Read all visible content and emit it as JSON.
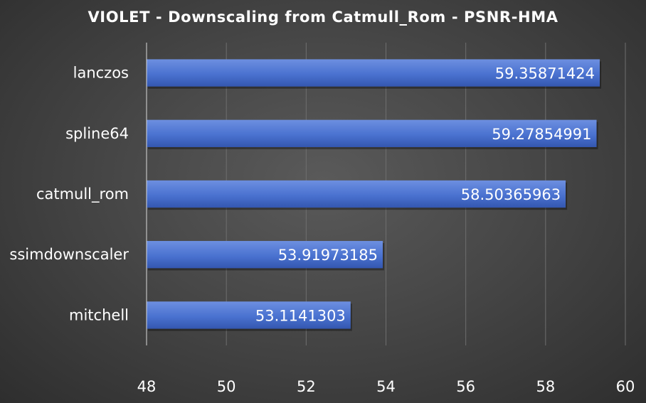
{
  "chart_data": {
    "type": "bar",
    "orientation": "horizontal",
    "title": "VIOLET - Downscaling from Catmull_Rom - PSNR-HMA",
    "categories": [
      "lanczos",
      "spline64",
      "catmull_rom",
      "ssimdownscaler",
      "mitchell"
    ],
    "values": [
      59.35871424,
      59.27854991,
      58.50365963,
      53.91973185,
      53.1141303
    ],
    "value_labels": [
      "59.35871424",
      "59.27854991",
      "58.50365963",
      "53.91973185",
      "53.1141303"
    ],
    "xlim": [
      48,
      60
    ],
    "xticks": [
      48,
      50,
      52,
      54,
      56,
      58,
      60
    ],
    "grid": true,
    "legend": "none",
    "colors": {
      "bar_top": "#6d8fe0",
      "bar_mid": "#4a72d0",
      "bar_bottom": "#3457b0",
      "gridline": "#6e6e6e",
      "axis": "#d9d9d9",
      "text": "#ffffff"
    }
  }
}
